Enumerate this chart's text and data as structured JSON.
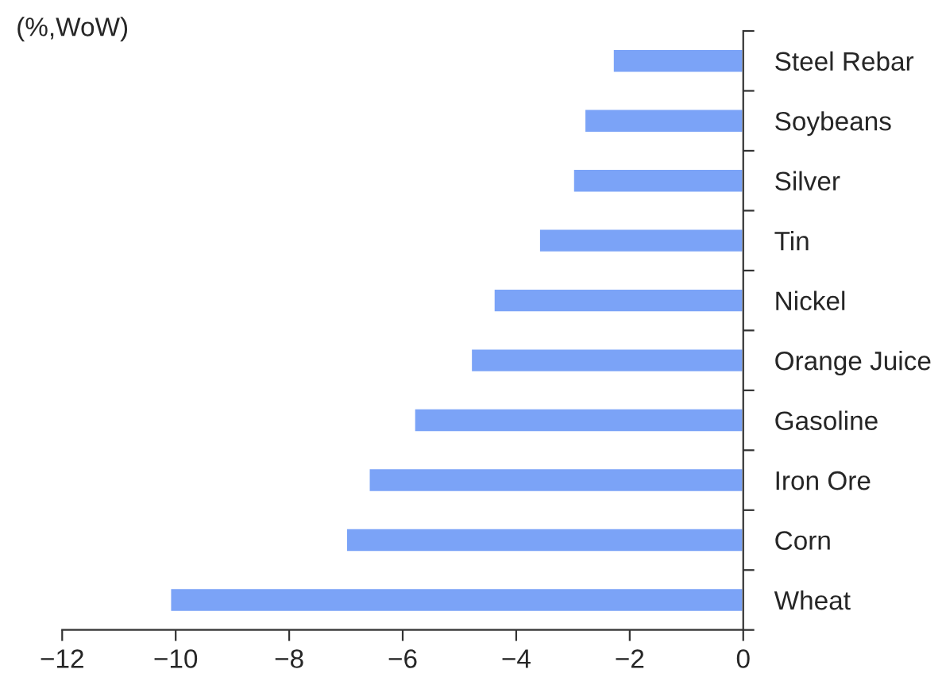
{
  "chart_data": {
    "type": "bar",
    "orientation": "horizontal",
    "title": "(%,WoW)",
    "categories": [
      "Steel Rebar",
      "Soybeans",
      "Silver",
      "Tin",
      "Nickel",
      "Orange Juice",
      "Gasoline",
      "Iron Ore",
      "Corn",
      "Wheat"
    ],
    "values": [
      -2.3,
      -2.8,
      -3.0,
      -3.6,
      -4.4,
      -4.8,
      -5.8,
      -6.6,
      -7.0,
      -10.1
    ],
    "color": "#7ba3f7",
    "xlim": [
      -12,
      0
    ],
    "xticks": [
      -12,
      -10,
      -8,
      -6,
      -4,
      -2,
      0
    ],
    "grid": false
  }
}
